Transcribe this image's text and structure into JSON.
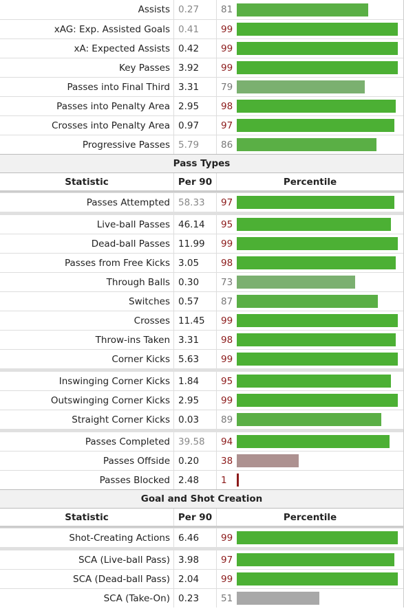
{
  "sections": [
    {
      "title": "",
      "show_header": false,
      "rows": [
        {
          "label": "Assists",
          "per90": "0.27",
          "pct": 81,
          "muted": true,
          "gap": false
        },
        {
          "label": "xAG: Exp. Assisted Goals",
          "per90": "0.41",
          "pct": 99,
          "muted": true,
          "gap": false
        },
        {
          "label": "xA: Expected Assists",
          "per90": "0.42",
          "pct": 99,
          "muted": false,
          "gap": false
        },
        {
          "label": "Key Passes",
          "per90": "3.92",
          "pct": 99,
          "muted": false,
          "gap": false
        },
        {
          "label": "Passes into Final Third",
          "per90": "3.31",
          "pct": 79,
          "muted": false,
          "gap": false
        },
        {
          "label": "Passes into Penalty Area",
          "per90": "2.95",
          "pct": 98,
          "muted": false,
          "gap": false
        },
        {
          "label": "Crosses into Penalty Area",
          "per90": "0.97",
          "pct": 97,
          "muted": false,
          "gap": false
        },
        {
          "label": "Progressive Passes",
          "per90": "5.79",
          "pct": 86,
          "muted": true,
          "gap": false
        }
      ]
    },
    {
      "title": "Pass Types",
      "show_header": true,
      "rows": [
        {
          "label": "Passes Attempted",
          "per90": "58.33",
          "pct": 97,
          "muted": true,
          "gap": false
        },
        {
          "label": "Live-ball Passes",
          "per90": "46.14",
          "pct": 95,
          "muted": false,
          "gap": true
        },
        {
          "label": "Dead-ball Passes",
          "per90": "11.99",
          "pct": 99,
          "muted": false,
          "gap": false
        },
        {
          "label": "Passes from Free Kicks",
          "per90": "3.05",
          "pct": 98,
          "muted": false,
          "gap": false
        },
        {
          "label": "Through Balls",
          "per90": "0.30",
          "pct": 73,
          "muted": false,
          "gap": false
        },
        {
          "label": "Switches",
          "per90": "0.57",
          "pct": 87,
          "muted": false,
          "gap": false
        },
        {
          "label": "Crosses",
          "per90": "11.45",
          "pct": 99,
          "muted": false,
          "gap": false
        },
        {
          "label": "Throw-ins Taken",
          "per90": "3.31",
          "pct": 98,
          "muted": false,
          "gap": false
        },
        {
          "label": "Corner Kicks",
          "per90": "5.63",
          "pct": 99,
          "muted": false,
          "gap": false
        },
        {
          "label": "Inswinging Corner Kicks",
          "per90": "1.84",
          "pct": 95,
          "muted": false,
          "gap": true
        },
        {
          "label": "Outswinging Corner Kicks",
          "per90": "2.95",
          "pct": 99,
          "muted": false,
          "gap": false
        },
        {
          "label": "Straight Corner Kicks",
          "per90": "0.03",
          "pct": 89,
          "muted": false,
          "gap": false
        },
        {
          "label": "Passes Completed",
          "per90": "39.58",
          "pct": 94,
          "muted": true,
          "gap": true
        },
        {
          "label": "Passes Offside",
          "per90": "0.20",
          "pct": 38,
          "muted": false,
          "gap": false
        },
        {
          "label": "Passes Blocked",
          "per90": "2.48",
          "pct": 1,
          "muted": false,
          "gap": false
        }
      ]
    },
    {
      "title": "Goal and Shot Creation",
      "show_header": true,
      "rows": [
        {
          "label": "Shot-Creating Actions",
          "per90": "6.46",
          "pct": 99,
          "muted": false,
          "gap": false
        },
        {
          "label": "SCA (Live-ball Pass)",
          "per90": "3.98",
          "pct": 97,
          "muted": false,
          "gap": true
        },
        {
          "label": "SCA (Dead-ball Pass)",
          "per90": "2.04",
          "pct": 99,
          "muted": false,
          "gap": false
        },
        {
          "label": "SCA (Take-On)",
          "per90": "0.23",
          "pct": 51,
          "muted": false,
          "gap": false
        }
      ]
    }
  ],
  "header": {
    "statistic": "Statistic",
    "per90": "Per 90",
    "percentile": "Percentile"
  },
  "colors": {
    "top": "#4cb034",
    "high": "#5aaf45",
    "mid": "#7bb070",
    "avg": "#a8a8a8",
    "low": "#ad9190",
    "lowest": "#8b1a1a"
  }
}
